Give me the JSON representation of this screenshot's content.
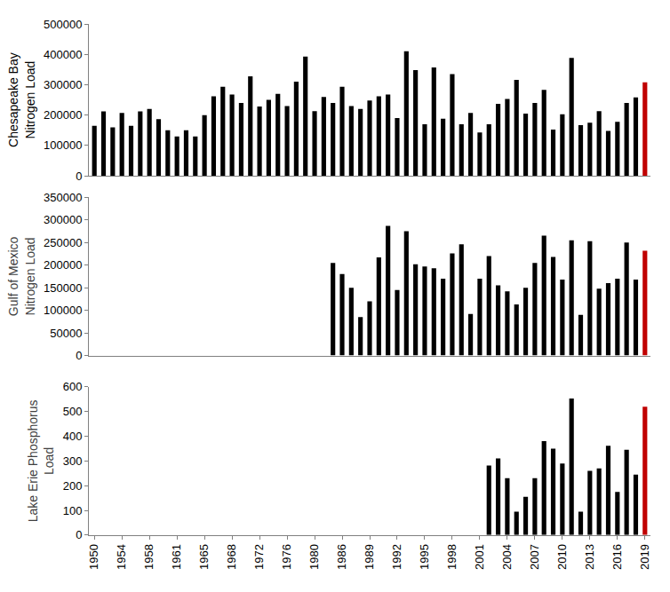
{
  "chart_data": [
    {
      "type": "bar",
      "y_label": "Chesapeake Bay\nNitrogen Load",
      "categories": [
        "1950",
        null,
        null,
        "1954",
        null,
        null,
        "1958",
        null,
        null,
        "1961",
        null,
        null,
        "1965",
        null,
        null,
        "1968",
        null,
        null,
        "1972",
        null,
        null,
        "1976",
        null,
        null,
        "1980",
        null,
        null,
        "1986",
        null,
        null,
        "1989",
        null,
        null,
        "1992",
        null,
        null,
        "1995",
        null,
        null,
        "1998",
        null,
        null,
        "2001",
        null,
        null,
        "2004",
        null,
        null,
        "2007",
        null,
        null,
        "2010",
        null,
        null,
        "2013",
        null,
        null,
        "2016",
        null,
        null,
        "2019"
      ],
      "values": [
        165000,
        212000,
        160000,
        207000,
        165000,
        212000,
        220000,
        187000,
        150000,
        130000,
        150000,
        130000,
        200000,
        262000,
        293000,
        268000,
        240000,
        328000,
        228000,
        250000,
        270000,
        230000,
        310000,
        393000,
        213000,
        260000,
        240000,
        293000,
        230000,
        220000,
        248000,
        262000,
        268000,
        190000,
        410000,
        348000,
        170000,
        357000,
        188000,
        335000,
        170000,
        207000,
        143000,
        170000,
        237000,
        253000,
        316000,
        205000,
        240000,
        283000,
        152000,
        203000,
        388000,
        167000,
        175000,
        213000,
        148000,
        178000,
        240000,
        258000,
        308000
      ],
      "colors": [
        "#000000",
        "#000000",
        "#000000",
        "#000000",
        "#000000",
        "#000000",
        "#000000",
        "#000000",
        "#000000",
        "#000000",
        "#000000",
        "#000000",
        "#000000",
        "#000000",
        "#000000",
        "#000000",
        "#000000",
        "#000000",
        "#000000",
        "#000000",
        "#000000",
        "#000000",
        "#000000",
        "#000000",
        "#000000",
        "#000000",
        "#000000",
        "#000000",
        "#000000",
        "#000000",
        "#000000",
        "#000000",
        "#000000",
        "#000000",
        "#000000",
        "#000000",
        "#000000",
        "#000000",
        "#000000",
        "#000000",
        "#000000",
        "#000000",
        "#000000",
        "#000000",
        "#000000",
        "#000000",
        "#000000",
        "#000000",
        "#000000",
        "#000000",
        "#000000",
        "#000000",
        "#000000",
        "#000000",
        "#000000",
        "#000000",
        "#000000",
        "#000000",
        "#000000",
        "#000000",
        "#c00000"
      ],
      "ylim": [
        0,
        500000
      ],
      "yticks": [
        0,
        100000,
        200000,
        300000,
        400000,
        500000
      ],
      "grid": false,
      "tick_labels": "y"
    },
    {
      "type": "bar",
      "y_label": "Gulf of Mexico\nNitrogen Load",
      "categories": [
        "1950",
        null,
        null,
        "1954",
        null,
        null,
        "1958",
        null,
        null,
        "1961",
        null,
        null,
        "1965",
        null,
        null,
        "1968",
        null,
        null,
        "1972",
        null,
        null,
        "1976",
        null,
        null,
        "1980",
        null,
        null,
        "1986",
        null,
        null,
        "1989",
        null,
        null,
        "1992",
        null,
        null,
        "1995",
        null,
        null,
        "1998",
        null,
        null,
        "2001",
        null,
        null,
        "2004",
        null,
        null,
        "2007",
        null,
        null,
        "2010",
        null,
        null,
        "2013",
        null,
        null,
        "2016",
        null,
        null,
        "2019"
      ],
      "values": [
        null,
        null,
        null,
        null,
        null,
        null,
        null,
        null,
        null,
        null,
        null,
        null,
        null,
        null,
        null,
        null,
        null,
        null,
        null,
        null,
        null,
        null,
        null,
        null,
        null,
        null,
        205000,
        180000,
        150000,
        85000,
        120000,
        217000,
        287000,
        145000,
        275000,
        202000,
        197000,
        193000,
        170000,
        226000,
        246000,
        92000,
        170000,
        220000,
        155000,
        142000,
        113000,
        150000,
        205000,
        265000,
        218000,
        168000,
        255000,
        90000,
        253000,
        148000,
        160000,
        170000,
        250000,
        168000,
        232000
      ],
      "colors": [
        "#000000",
        "#000000",
        "#000000",
        "#000000",
        "#000000",
        "#000000",
        "#000000",
        "#000000",
        "#000000",
        "#000000",
        "#000000",
        "#000000",
        "#000000",
        "#000000",
        "#000000",
        "#000000",
        "#000000",
        "#000000",
        "#000000",
        "#000000",
        "#000000",
        "#000000",
        "#000000",
        "#000000",
        "#000000",
        "#000000",
        "#000000",
        "#000000",
        "#000000",
        "#000000",
        "#000000",
        "#000000",
        "#000000",
        "#000000",
        "#000000",
        "#000000",
        "#000000",
        "#000000",
        "#000000",
        "#000000",
        "#000000",
        "#000000",
        "#000000",
        "#000000",
        "#000000",
        "#000000",
        "#000000",
        "#000000",
        "#000000",
        "#000000",
        "#000000",
        "#000000",
        "#000000",
        "#000000",
        "#000000",
        "#000000",
        "#000000",
        "#000000",
        "#000000",
        "#000000",
        "#c00000"
      ],
      "ylim": [
        0,
        350000
      ],
      "yticks": [
        0,
        50000,
        100000,
        150000,
        200000,
        250000,
        300000,
        350000
      ],
      "grid": false,
      "tick_labels": "y"
    },
    {
      "type": "bar",
      "y_label": "Lake Erie Phosphorus\nLoad",
      "categories": [
        "1950",
        null,
        null,
        "1954",
        null,
        null,
        "1958",
        null,
        null,
        "1961",
        null,
        null,
        "1965",
        null,
        null,
        "1968",
        null,
        null,
        "1972",
        null,
        null,
        "1976",
        null,
        null,
        "1980",
        null,
        null,
        "1986",
        null,
        null,
        "1989",
        null,
        null,
        "1992",
        null,
        null,
        "1995",
        null,
        null,
        "1998",
        null,
        null,
        "2001",
        null,
        null,
        "2004",
        null,
        null,
        "2007",
        null,
        null,
        "2010",
        null,
        null,
        "2013",
        null,
        null,
        "2016",
        null,
        null,
        "2019"
      ],
      "values": [
        null,
        null,
        null,
        null,
        null,
        null,
        null,
        null,
        null,
        null,
        null,
        null,
        null,
        null,
        null,
        null,
        null,
        null,
        null,
        null,
        null,
        null,
        null,
        null,
        null,
        null,
        null,
        null,
        null,
        null,
        null,
        null,
        null,
        null,
        null,
        null,
        null,
        null,
        null,
        null,
        null,
        null,
        null,
        282,
        310,
        230,
        95,
        155,
        230,
        380,
        350,
        290,
        553,
        95,
        260,
        270,
        362,
        175,
        345,
        245,
        520
      ],
      "colors": [
        "#000000",
        "#000000",
        "#000000",
        "#000000",
        "#000000",
        "#000000",
        "#000000",
        "#000000",
        "#000000",
        "#000000",
        "#000000",
        "#000000",
        "#000000",
        "#000000",
        "#000000",
        "#000000",
        "#000000",
        "#000000",
        "#000000",
        "#000000",
        "#000000",
        "#000000",
        "#000000",
        "#000000",
        "#000000",
        "#000000",
        "#000000",
        "#000000",
        "#000000",
        "#000000",
        "#000000",
        "#000000",
        "#000000",
        "#000000",
        "#000000",
        "#000000",
        "#000000",
        "#000000",
        "#000000",
        "#000000",
        "#000000",
        "#000000",
        "#000000",
        "#000000",
        "#000000",
        "#000000",
        "#000000",
        "#000000",
        "#000000",
        "#000000",
        "#000000",
        "#000000",
        "#000000",
        "#000000",
        "#000000",
        "#000000",
        "#000000",
        "#000000",
        "#000000",
        "#000000",
        "#c00000"
      ],
      "ylim": [
        0,
        600
      ],
      "yticks": [
        0,
        100,
        200,
        300,
        400,
        500,
        600
      ],
      "grid": false,
      "tick_labels": true
    }
  ]
}
